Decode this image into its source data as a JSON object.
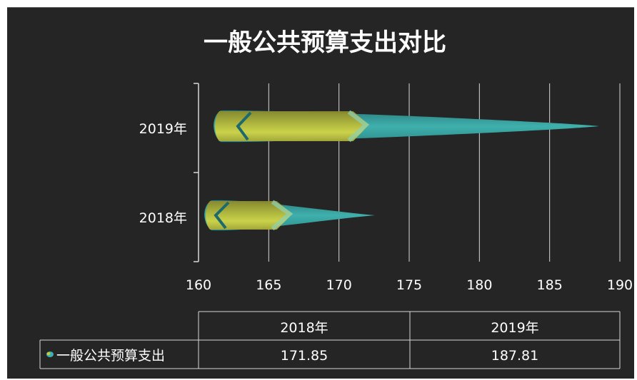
{
  "chart_data": {
    "type": "bar",
    "orientation": "horizontal",
    "title": "一般公共预算支出对比",
    "categories": [
      "2018年",
      "2019年"
    ],
    "series": [
      {
        "name": "一般公共预算支出",
        "values": [
          171.85,
          187.81
        ]
      }
    ],
    "xlim": [
      160,
      190
    ],
    "x_ticks": [
      160,
      165,
      170,
      175,
      180,
      185,
      190
    ],
    "grid": true,
    "data_table": {
      "header": [
        "2018年",
        "2019年"
      ],
      "rows": [
        {
          "label": "一般公共预算支出",
          "values": [
            "171.85",
            "187.81"
          ]
        }
      ]
    },
    "colors": {
      "background": "#252525",
      "teal": "#3aa6a4",
      "yellow": "#c9cc3f",
      "olive": "#8b8b2e",
      "dark_teal": "#1f6f72",
      "grid": "#d8d8d8"
    }
  }
}
